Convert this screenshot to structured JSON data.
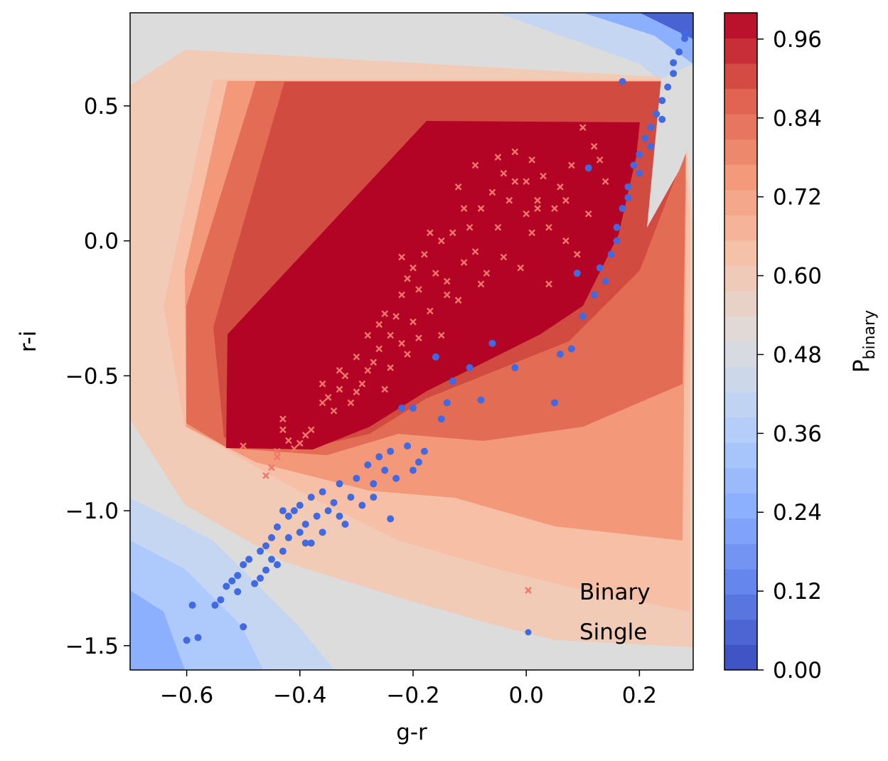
{
  "chart_data": {
    "type": "scatter",
    "title": "",
    "xlabel": "g-r",
    "ylabel": "r-i",
    "xlim": [
      -0.7,
      0.295
    ],
    "ylim": [
      -1.59,
      0.845
    ],
    "x_ticks": [
      "−0.6",
      "−0.4",
      "−0.2",
      "0.0",
      "0.2"
    ],
    "x_tick_values": [
      -0.6,
      -0.4,
      -0.2,
      0.0,
      0.2
    ],
    "y_ticks": [
      "−1.5",
      "−1.0",
      "−0.5",
      "0.0",
      "0.5"
    ],
    "y_tick_values": [
      -1.5,
      -1.0,
      -0.5,
      0.0,
      0.5
    ],
    "colorbar": {
      "label_main": "P",
      "label_sub": "binary",
      "range": [
        0.0,
        1.0
      ],
      "ticks": [
        "0.00",
        "0.12",
        "0.24",
        "0.36",
        "0.48",
        "0.60",
        "0.72",
        "0.84",
        "0.96"
      ],
      "tick_values": [
        0.0,
        0.12,
        0.24,
        0.36,
        0.48,
        0.6,
        0.72,
        0.84,
        0.96
      ],
      "levels": 26,
      "colormap": "coolwarm"
    },
    "background_contour": "Predicted P_binary over g-r vs r-i (coolwarm filled contours)",
    "legend": {
      "placement": "lower-right",
      "entries": [
        {
          "label": "Binary",
          "marker": "x",
          "color": "#f0776a"
        },
        {
          "label": "Single",
          "marker": "o",
          "color": "#4169e1"
        }
      ]
    },
    "series": [
      {
        "name": "Binary",
        "color": "#f0776a",
        "marker": "x",
        "points": [
          [
            -0.46,
            -0.87
          ],
          [
            -0.45,
            -0.84
          ],
          [
            -0.44,
            -0.8
          ],
          [
            -0.44,
            -0.78
          ],
          [
            -0.43,
            -0.66
          ],
          [
            -0.43,
            -0.7
          ],
          [
            -0.42,
            -0.74
          ],
          [
            -0.41,
            -0.77
          ],
          [
            -0.4,
            -0.75
          ],
          [
            -0.39,
            -0.72
          ],
          [
            -0.38,
            -0.7
          ],
          [
            -0.36,
            -0.6
          ],
          [
            -0.35,
            -0.58
          ],
          [
            -0.34,
            -0.63
          ],
          [
            -0.33,
            -0.55
          ],
          [
            -0.32,
            -0.5
          ],
          [
            -0.31,
            -0.6
          ],
          [
            -0.3,
            -0.56
          ],
          [
            -0.29,
            -0.53
          ],
          [
            -0.28,
            -0.48
          ],
          [
            -0.27,
            -0.45
          ],
          [
            -0.26,
            -0.4
          ],
          [
            -0.26,
            -0.31
          ],
          [
            -0.25,
            -0.55
          ],
          [
            -0.24,
            -0.35
          ],
          [
            -0.24,
            -0.47
          ],
          [
            -0.23,
            -0.28
          ],
          [
            -0.22,
            -0.38
          ],
          [
            -0.22,
            -0.2
          ],
          [
            -0.21,
            -0.42
          ],
          [
            -0.2,
            -0.1
          ],
          [
            -0.2,
            -0.3
          ],
          [
            -0.19,
            -0.18
          ],
          [
            -0.18,
            -0.05
          ],
          [
            -0.17,
            -0.26
          ],
          [
            -0.16,
            -0.12
          ],
          [
            -0.15,
            0.0
          ],
          [
            -0.15,
            -0.35
          ],
          [
            -0.14,
            -0.15
          ],
          [
            -0.13,
            0.03
          ],
          [
            -0.12,
            -0.22
          ],
          [
            -0.11,
            -0.08
          ],
          [
            -0.1,
            0.05
          ],
          [
            -0.09,
            -0.04
          ],
          [
            -0.08,
            0.12
          ],
          [
            -0.07,
            -0.12
          ],
          [
            -0.06,
            0.18
          ],
          [
            -0.05,
            0.05
          ],
          [
            -0.04,
            -0.06
          ],
          [
            -0.03,
            0.15
          ],
          [
            -0.02,
            0.22
          ],
          [
            -0.01,
            -0.1
          ],
          [
            0.0,
            0.1
          ],
          [
            0.0,
            0.22
          ],
          [
            0.01,
            0.03
          ],
          [
            0.02,
            0.15
          ],
          [
            0.03,
            0.24
          ],
          [
            0.04,
            -0.16
          ],
          [
            0.05,
            0.12
          ],
          [
            0.06,
            0.2
          ],
          [
            0.07,
            0.0
          ],
          [
            0.08,
            0.28
          ],
          [
            0.09,
            -0.05
          ],
          [
            0.1,
            0.42
          ],
          [
            0.11,
            0.1
          ],
          [
            0.12,
            0.35
          ],
          [
            0.13,
            0.3
          ],
          [
            0.14,
            0.22
          ],
          [
            -0.5,
            -0.76
          ],
          [
            -0.22,
            -0.06
          ],
          [
            -0.19,
            -0.36
          ],
          [
            -0.12,
            0.2
          ],
          [
            -0.09,
            0.28
          ],
          [
            -0.05,
            0.31
          ],
          [
            0.02,
            0.12
          ],
          [
            -0.08,
            -0.16
          ],
          [
            -0.14,
            -0.2
          ],
          [
            -0.28,
            -0.35
          ],
          [
            -0.3,
            -0.43
          ],
          [
            -0.33,
            -0.48
          ],
          [
            -0.36,
            -0.53
          ],
          [
            -0.04,
            0.25
          ],
          [
            0.04,
            0.05
          ],
          [
            0.07,
            0.15
          ],
          [
            -0.02,
            0.33
          ],
          [
            0.01,
            0.3
          ],
          [
            -0.17,
            0.03
          ],
          [
            -0.21,
            -0.14
          ],
          [
            -0.25,
            -0.27
          ],
          [
            -0.11,
            0.12
          ]
        ]
      },
      {
        "name": "Single",
        "color": "#4169e1",
        "marker": "o",
        "points": [
          [
            -0.6,
            -1.48
          ],
          [
            -0.59,
            -1.35
          ],
          [
            -0.58,
            -1.47
          ],
          [
            -0.55,
            -1.35
          ],
          [
            -0.54,
            -1.33
          ],
          [
            -0.53,
            -1.28
          ],
          [
            -0.52,
            -1.26
          ],
          [
            -0.51,
            -1.24
          ],
          [
            -0.5,
            -1.43
          ],
          [
            -0.5,
            -1.2
          ],
          [
            -0.49,
            -1.18
          ],
          [
            -0.48,
            -1.27
          ],
          [
            -0.47,
            -1.15
          ],
          [
            -0.46,
            -1.13
          ],
          [
            -0.46,
            -1.22
          ],
          [
            -0.45,
            -1.1
          ],
          [
            -0.44,
            -1.2
          ],
          [
            -0.44,
            -1.06
          ],
          [
            -0.43,
            -1.15
          ],
          [
            -0.42,
            -1.02
          ],
          [
            -0.42,
            -1.1
          ],
          [
            -0.41,
            -1.0
          ],
          [
            -0.4,
            -1.08
          ],
          [
            -0.4,
            -0.98
          ],
          [
            -0.39,
            -1.05
          ],
          [
            -0.38,
            -0.95
          ],
          [
            -0.38,
            -1.12
          ],
          [
            -0.37,
            -1.02
          ],
          [
            -0.36,
            -0.93
          ],
          [
            -0.35,
            -1.0
          ],
          [
            -0.34,
            -0.97
          ],
          [
            -0.33,
            -0.9
          ],
          [
            -0.32,
            -1.05
          ],
          [
            -0.31,
            -0.95
          ],
          [
            -0.3,
            -0.88
          ],
          [
            -0.29,
            -0.98
          ],
          [
            -0.28,
            -0.83
          ],
          [
            -0.27,
            -0.9
          ],
          [
            -0.26,
            -0.8
          ],
          [
            -0.25,
            -0.85
          ],
          [
            -0.24,
            -0.78
          ],
          [
            -0.23,
            -0.88
          ],
          [
            -0.22,
            -0.62
          ],
          [
            -0.21,
            -0.76
          ],
          [
            -0.2,
            -0.62
          ],
          [
            -0.19,
            -0.82
          ],
          [
            -0.18,
            -0.78
          ],
          [
            -0.16,
            -0.43
          ],
          [
            -0.15,
            -0.66
          ],
          [
            -0.14,
            -0.6
          ],
          [
            -0.13,
            -0.52
          ],
          [
            -0.1,
            -0.47
          ],
          [
            -0.08,
            -0.59
          ],
          [
            -0.06,
            -0.38
          ],
          [
            -0.02,
            -0.47
          ],
          [
            0.05,
            -0.6
          ],
          [
            0.06,
            -0.42
          ],
          [
            0.08,
            -0.4
          ],
          [
            0.1,
            -0.28
          ],
          [
            0.12,
            -0.2
          ],
          [
            0.14,
            -0.15
          ],
          [
            0.15,
            -0.05
          ],
          [
            0.16,
            0.05
          ],
          [
            0.17,
            0.12
          ],
          [
            0.18,
            0.2
          ],
          [
            0.19,
            0.28
          ],
          [
            0.2,
            0.32
          ],
          [
            0.21,
            0.38
          ],
          [
            0.22,
            0.42
          ],
          [
            0.23,
            0.47
          ],
          [
            0.24,
            0.52
          ],
          [
            0.25,
            0.57
          ],
          [
            0.26,
            0.62
          ],
          [
            0.26,
            0.66
          ],
          [
            0.27,
            0.7
          ],
          [
            0.28,
            0.75
          ],
          [
            0.28,
            0.77
          ],
          [
            0.17,
            0.59
          ],
          [
            0.11,
            0.27
          ],
          [
            0.09,
            -0.12
          ],
          [
            -0.51,
            -1.3
          ],
          [
            -0.47,
            -1.25
          ],
          [
            -0.43,
            -1.0
          ],
          [
            -0.39,
            -1.12
          ],
          [
            -0.36,
            -1.08
          ],
          [
            -0.33,
            -1.02
          ],
          [
            -0.27,
            -0.95
          ],
          [
            -0.24,
            -1.03
          ],
          [
            -0.2,
            -0.85
          ],
          [
            0.22,
            0.35
          ],
          [
            0.24,
            0.45
          ],
          [
            0.2,
            0.25
          ],
          [
            0.18,
            0.16
          ],
          [
            0.16,
            0.0
          ],
          [
            0.13,
            -0.1
          ],
          [
            -0.45,
            -1.18
          ]
        ]
      }
    ]
  }
}
